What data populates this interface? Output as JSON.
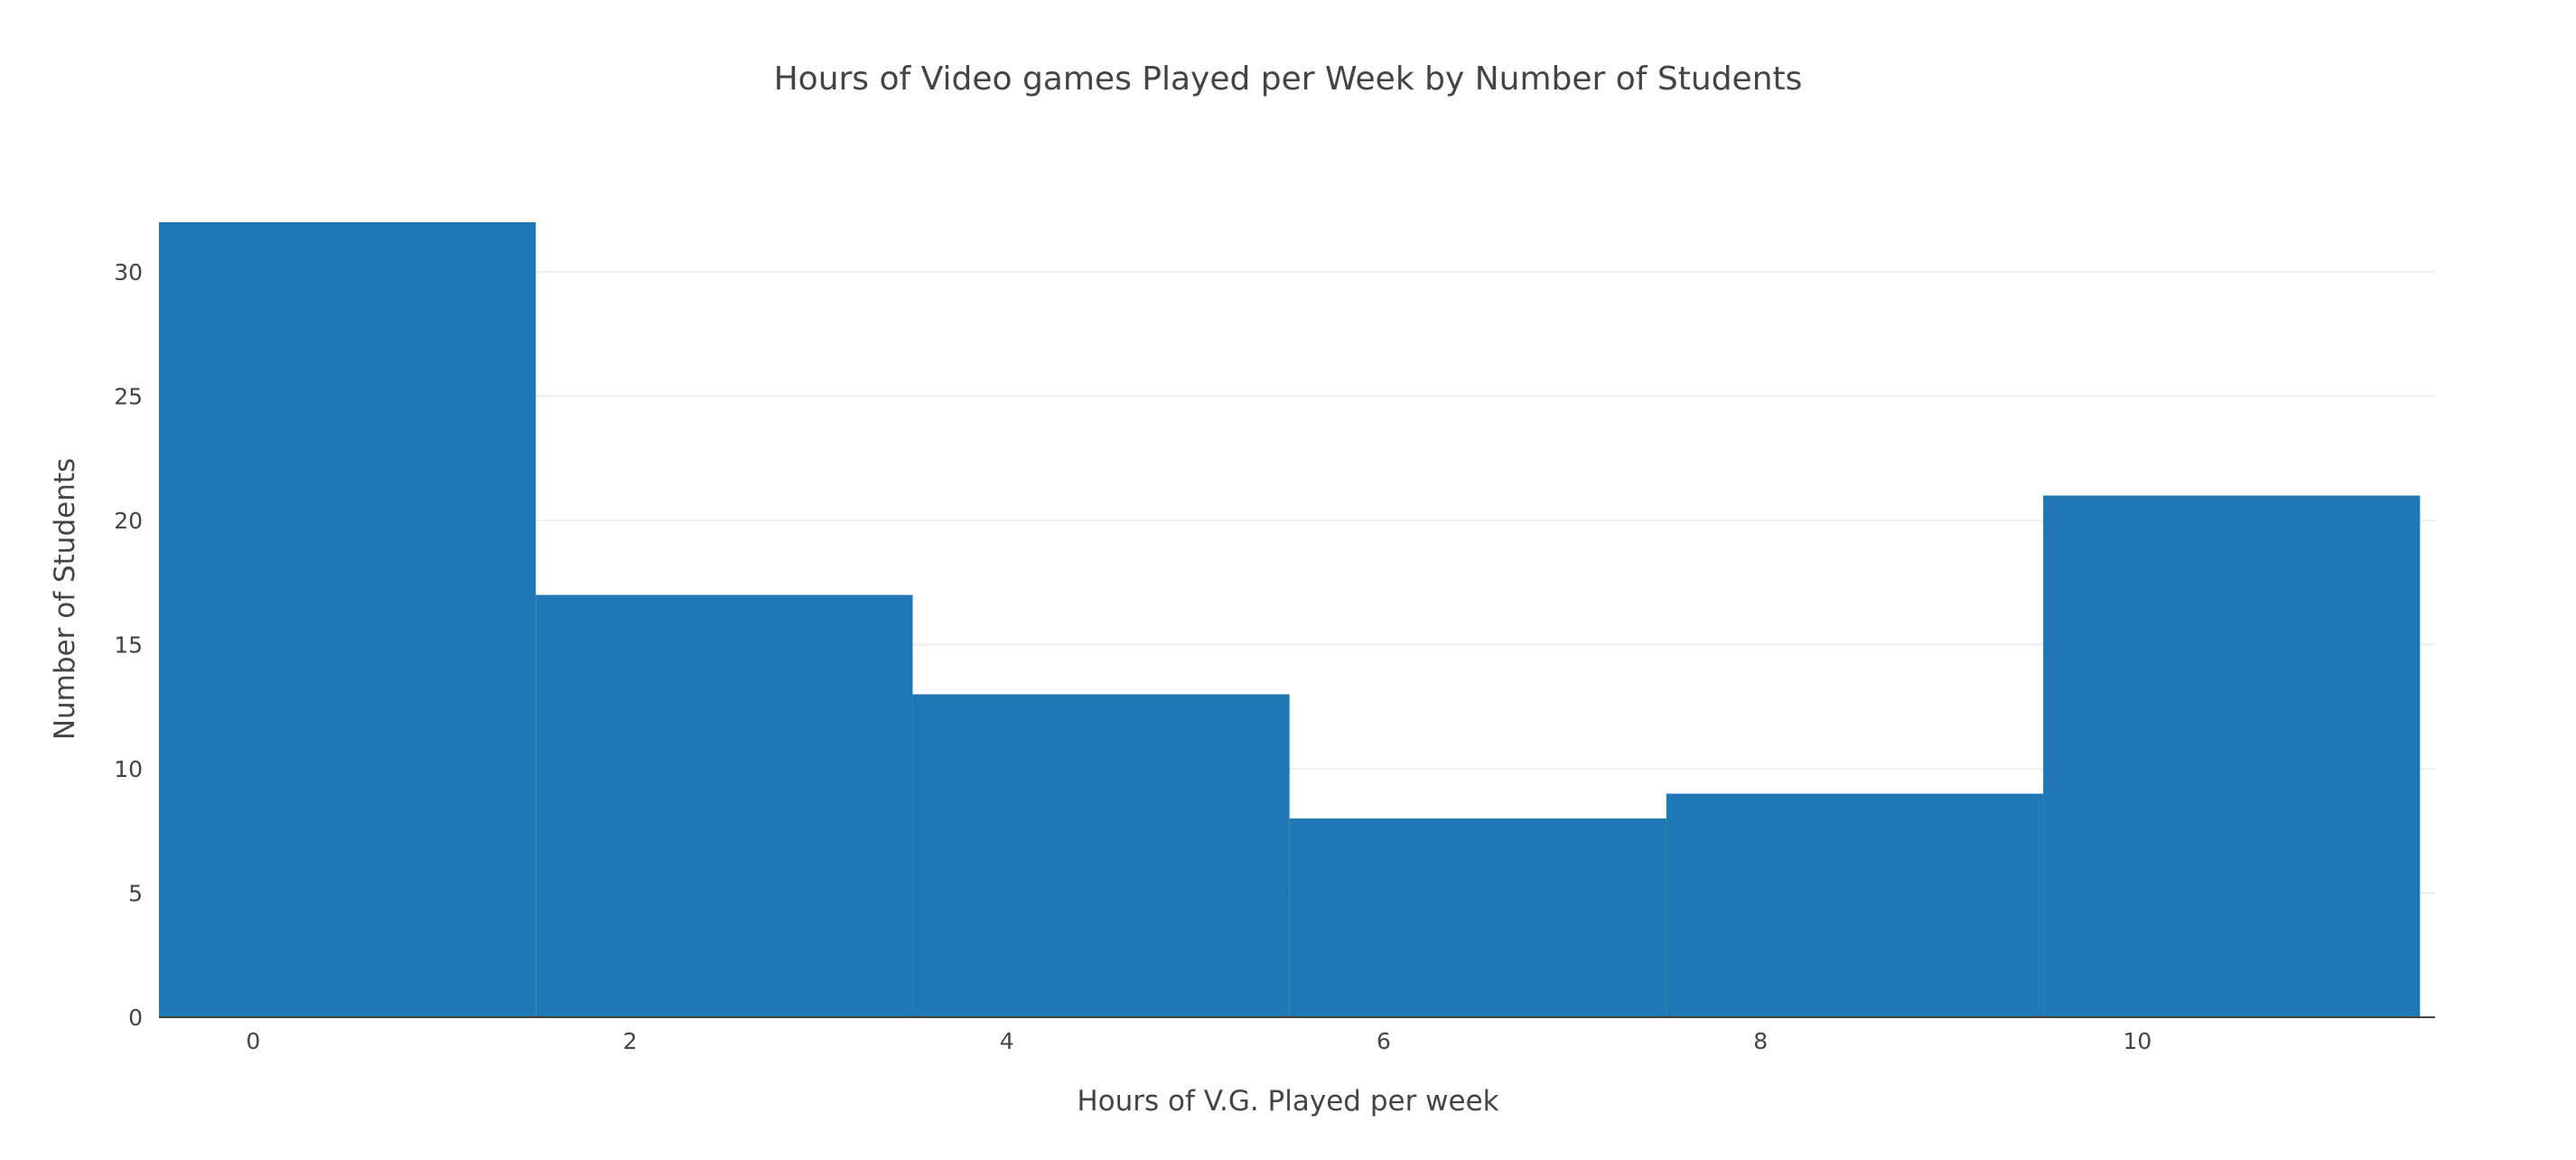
{
  "chart_data": {
    "type": "histogram",
    "title": "Hours of Video games Played per Week by Number of Students",
    "xlabel": "Hours of V.G. Played per week",
    "ylabel": "Number of Students",
    "bins": [
      {
        "start": -0.5,
        "end": 1.5,
        "value": 32
      },
      {
        "start": 1.5,
        "end": 3.5,
        "value": 17
      },
      {
        "start": 3.5,
        "end": 5.5,
        "value": 13
      },
      {
        "start": 5.5,
        "end": 7.5,
        "value": 8
      },
      {
        "start": 7.5,
        "end": 9.5,
        "value": 9
      },
      {
        "start": 9.5,
        "end": 11.5,
        "value": 21
      }
    ],
    "xlim": [
      -0.5,
      11.58
    ],
    "ylim": [
      0,
      32
    ],
    "xticks": [
      0,
      2,
      4,
      6,
      8,
      10
    ],
    "yticks": [
      0,
      5,
      10,
      15,
      20,
      25,
      30
    ],
    "grid": true,
    "colors": {
      "bar": "#1f77b4",
      "grid": "#eeeeee",
      "axis": "#444444",
      "text": "#444444"
    }
  }
}
